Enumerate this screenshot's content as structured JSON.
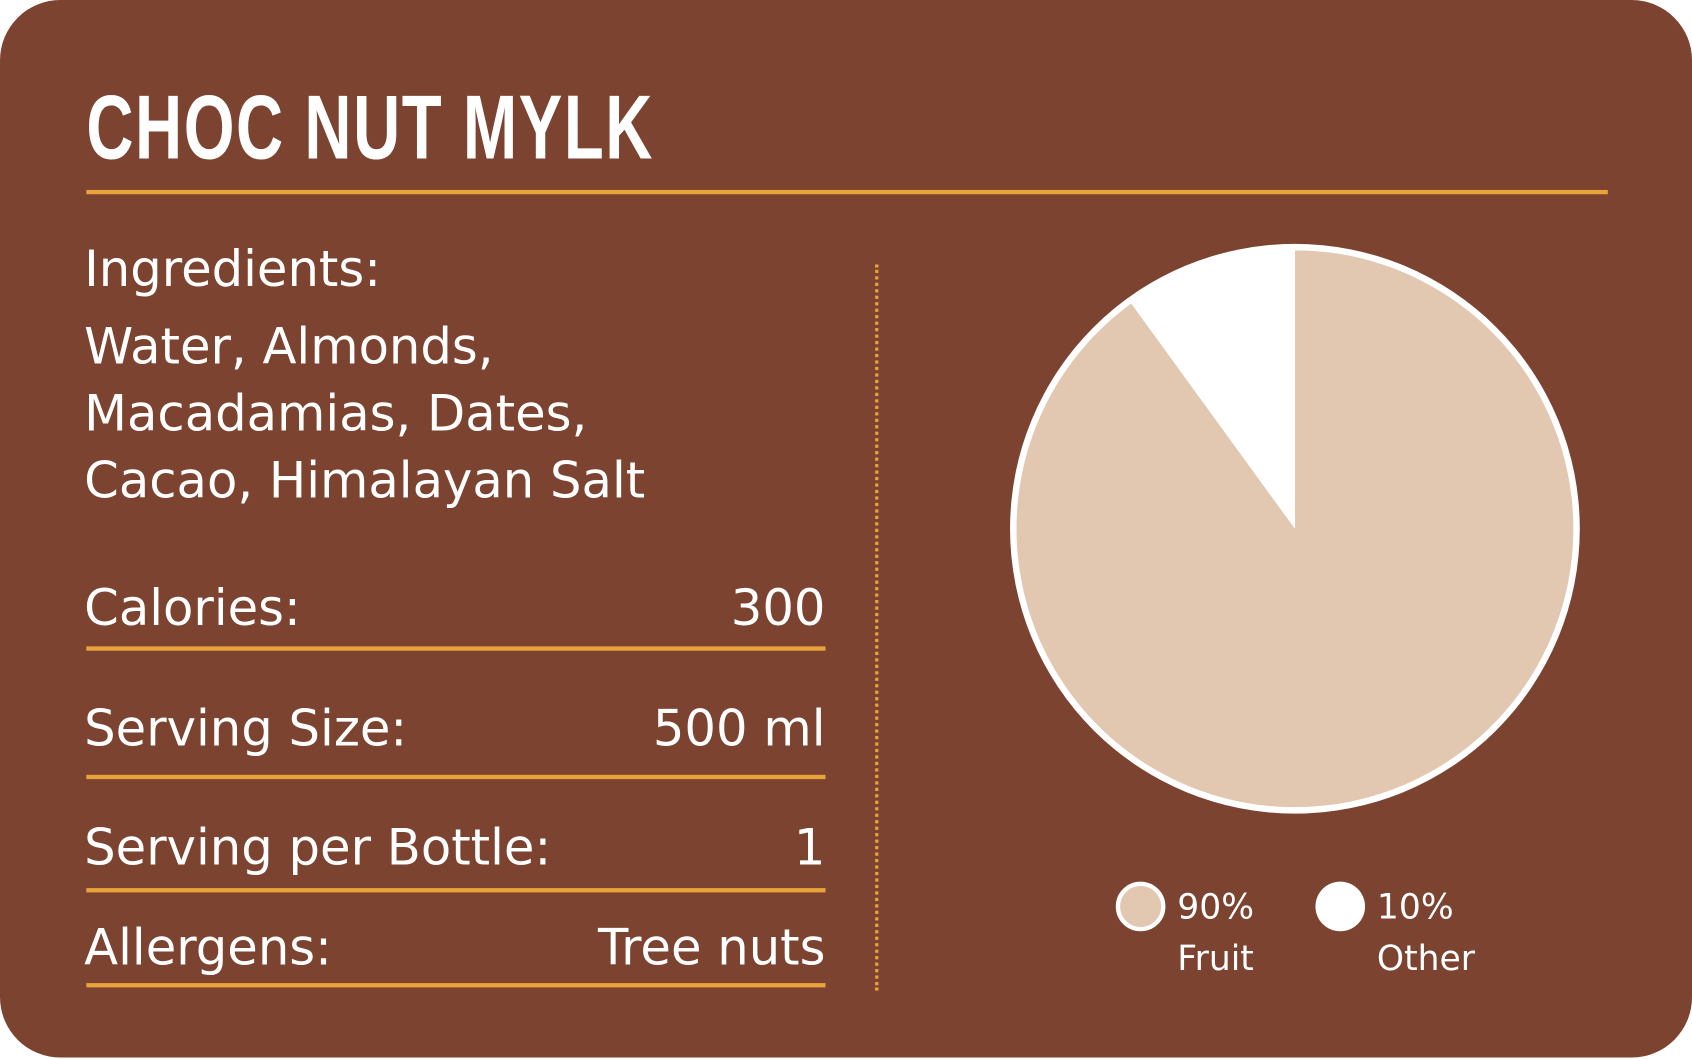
{
  "title": "CHOC NUT MYLK",
  "ingredients": {
    "label": "Ingredients:",
    "lines": [
      "Water, Almonds,",
      "Macadamias, Dates,",
      "Cacao, Himalayan Salt"
    ]
  },
  "facts": [
    {
      "label": "Calories:",
      "value": "300"
    },
    {
      "label": "Serving Size:",
      "value": "500 ml"
    },
    {
      "label": "Serving per Bottle:",
      "value": "1"
    },
    {
      "label": "Allergens:",
      "value": "Tree nuts"
    }
  ],
  "colors": {
    "background": "#7B4330",
    "accent": "#E8A33A",
    "fruit": "#E2C7B1",
    "other": "#FFFFFF"
  },
  "chart_data": {
    "type": "pie",
    "series": [
      {
        "name": "Fruit",
        "value": 90,
        "label": "90%",
        "color": "#E2C7B1"
      },
      {
        "name": "Other",
        "value": 10,
        "label": "10%",
        "color": "#FFFFFF"
      }
    ],
    "legend": "bottom"
  }
}
